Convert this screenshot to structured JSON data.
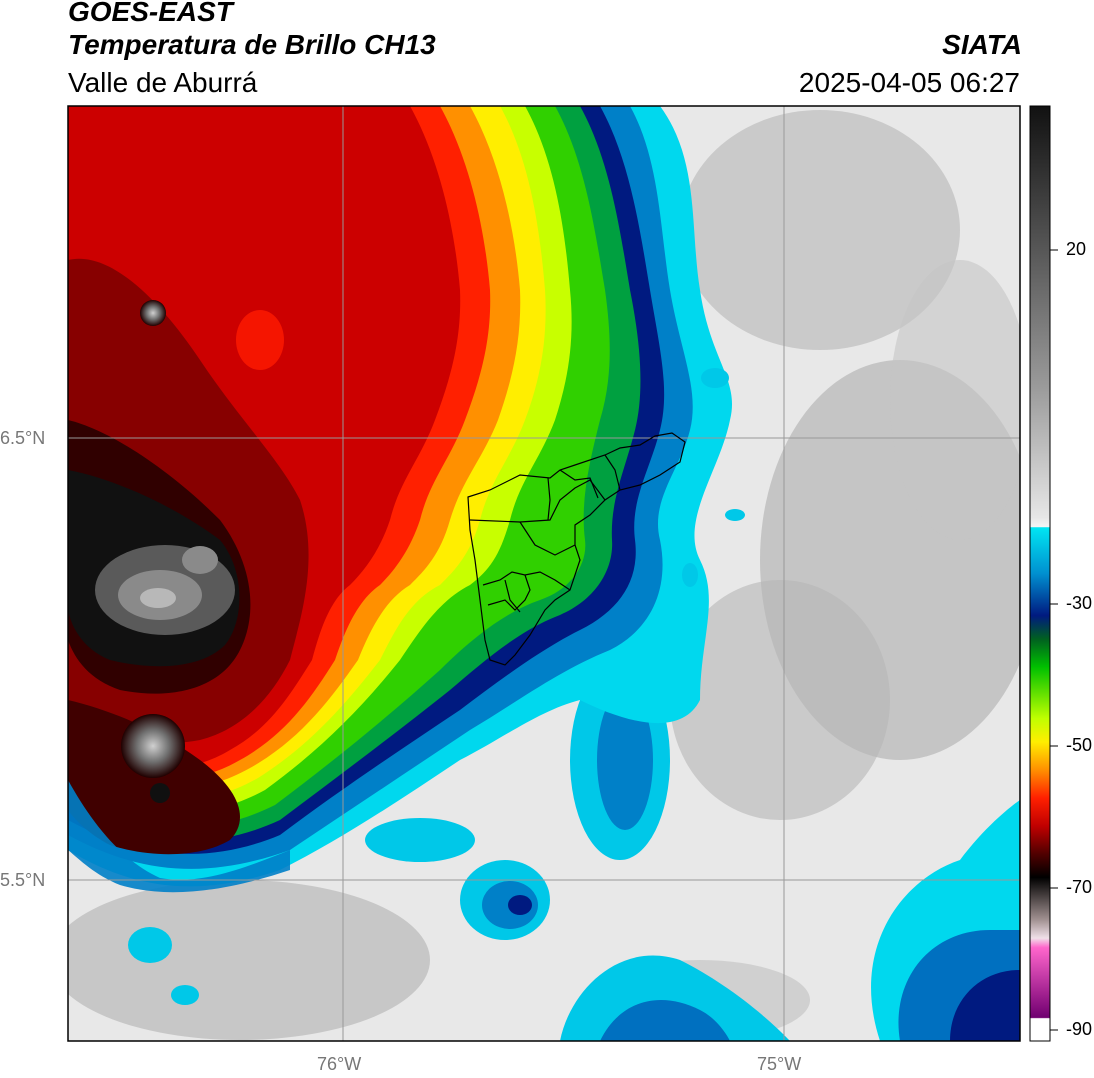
{
  "header": {
    "satellite": "GOES-EAST",
    "product": "Temperatura de Brillo CH13",
    "organization": "SIATA",
    "region": "Valle de Aburrá",
    "timestamp": "2025-04-05 06:27"
  },
  "map": {
    "lat_labels": [
      "6.5°N",
      "5.5°N"
    ],
    "lon_labels": [
      "76°W",
      "75°W"
    ]
  },
  "colorbar": {
    "tick_labels": [
      "20",
      "-30",
      "-50",
      "-70",
      "-90"
    ]
  },
  "colors": {
    "frame": "#000000",
    "grid": "#999999",
    "axis_text": "#777777"
  }
}
